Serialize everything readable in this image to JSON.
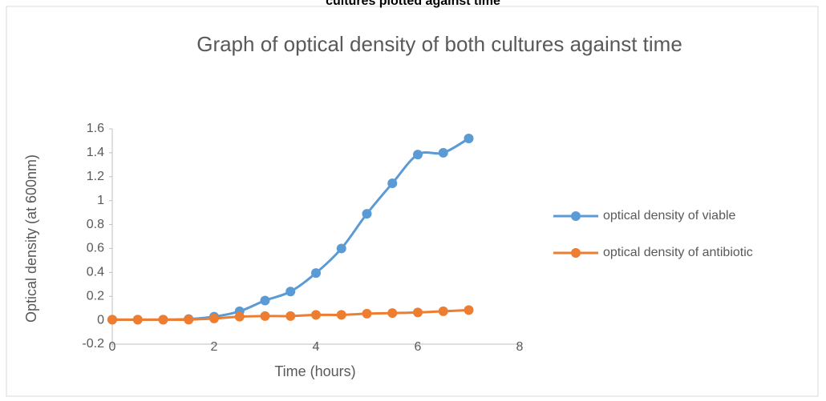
{
  "caption": "cultures plotted against time",
  "chart_data": {
    "type": "line",
    "title": "Graph of optical density of both cultures against time",
    "x_label": "Time (hours)",
    "y_label": "Optical density (at 600nm)",
    "x": [
      0,
      0.5,
      1,
      1.5,
      2,
      2.5,
      3,
      3.5,
      4,
      4.5,
      5,
      5.5,
      6,
      6.5,
      7
    ],
    "series": [
      {
        "name": "optical density of viable",
        "color": "#5b9bd5",
        "values": [
          0.005,
          0.005,
          0.005,
          0.01,
          0.03,
          0.075,
          0.165,
          0.24,
          0.395,
          0.6,
          0.89,
          1.145,
          1.385,
          1.4,
          1.52
        ]
      },
      {
        "name": "optical density of antibiotic",
        "color": "#ed7d31",
        "values": [
          0.005,
          0.005,
          0.005,
          0.005,
          0.015,
          0.03,
          0.035,
          0.035,
          0.045,
          0.045,
          0.055,
          0.06,
          0.065,
          0.075,
          0.085
        ]
      }
    ],
    "xlim": [
      0,
      8
    ],
    "xticks": [
      0,
      2,
      4,
      6,
      8
    ],
    "ylim": [
      -0.2,
      1.6
    ],
    "yticks": [
      -0.2,
      0,
      0.2,
      0.4,
      0.6,
      0.8,
      1,
      1.2,
      1.4,
      1.6
    ],
    "smooth": true,
    "markers": true,
    "legend": "right"
  }
}
